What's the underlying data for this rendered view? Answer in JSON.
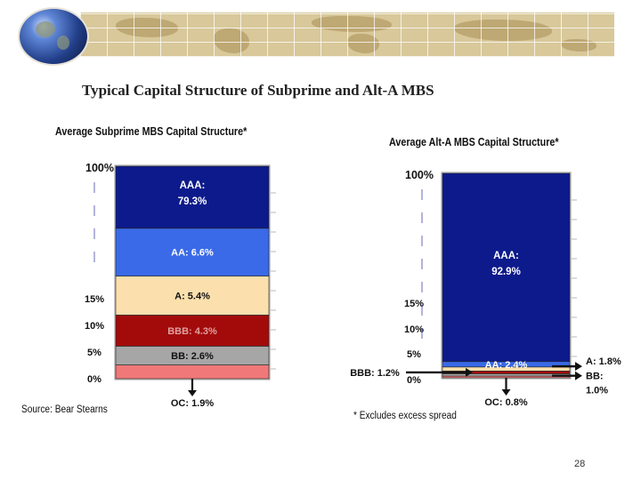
{
  "title": "Typical Capital Structure of Subprime and Alt-A MBS",
  "page_number": "28",
  "source": "Source: Bear Stearns",
  "footnote": "* Excludes excess spread",
  "colors": {
    "AAA": "#0d1a8c",
    "AA": "#3a6ae8",
    "A": "#fbe0ad",
    "BBB": "#a30b0b",
    "BB": "#a6a6a6",
    "OC": "#f07878",
    "banner": "#d8c89a"
  },
  "chart_data": [
    {
      "type": "bar",
      "stacked": true,
      "title": "Average Subprime MBS Capital Structure*",
      "ylim": [
        0,
        100
      ],
      "percent_labels": [
        "100%",
        "15%",
        "10%",
        "5%",
        "0%"
      ],
      "tranches": [
        {
          "name": "OC",
          "value": 1.9,
          "label": "OC: 1.9%",
          "label_position": "below"
        },
        {
          "name": "BB",
          "value": 2.6,
          "label": "BB: 2.6%",
          "label_position": "inside"
        },
        {
          "name": "BBB",
          "value": 4.3,
          "label": "BBB: 4.3%",
          "label_position": "inside"
        },
        {
          "name": "A",
          "value": 5.4,
          "label": "A: 5.4%",
          "label_position": "inside"
        },
        {
          "name": "AA",
          "value": 6.6,
          "label": "AA: 6.6%",
          "label_position": "inside"
        },
        {
          "name": "AAA",
          "value": 79.3,
          "label": "AAA:",
          "value_label": "79.3%",
          "label_position": "inside"
        }
      ]
    },
    {
      "type": "bar",
      "stacked": true,
      "title": "Average Alt-A MBS Capital Structure*",
      "ylim": [
        0,
        100
      ],
      "percent_labels": [
        "100%",
        "15%",
        "10%",
        "5%",
        "0%"
      ],
      "tranches": [
        {
          "name": "OC",
          "value": 0.8,
          "label": "OC: 0.8%",
          "label_position": "below"
        },
        {
          "name": "BB",
          "value": 1.0,
          "label": "BB:",
          "value_label": "1.0%",
          "label_position": "right"
        },
        {
          "name": "BBB",
          "value": 1.2,
          "label": "BBB: 1.2%",
          "label_position": "left"
        },
        {
          "name": "A",
          "value": 1.8,
          "label": "A: 1.8%",
          "label_position": "right"
        },
        {
          "name": "AA",
          "value": 2.4,
          "label": "AA: 2.4%",
          "label_position": "inside"
        },
        {
          "name": "AAA",
          "value": 92.9,
          "label": "AAA:",
          "value_label": "92.9%",
          "label_position": "inside"
        }
      ]
    }
  ]
}
